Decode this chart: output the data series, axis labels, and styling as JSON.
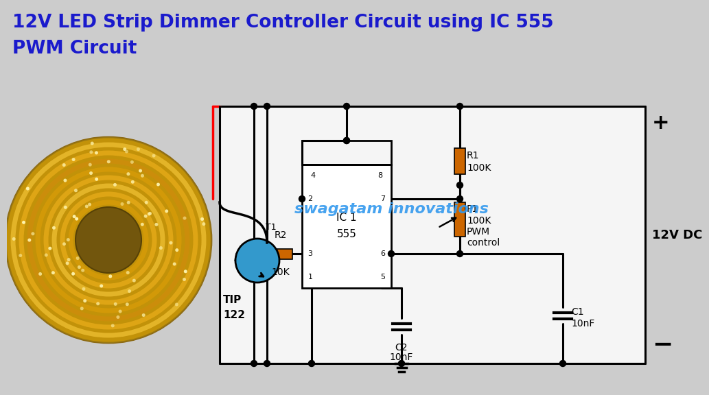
{
  "title_line1": "12V LED Strip Dimmer Controller Circuit using IC 555",
  "title_line2": "PWM Circuit",
  "title_color": "#1a1aCC",
  "bg_color": "#cccccc",
  "circuit_bg": "#f0f0f0",
  "wire_color": "#000000",
  "resistor_color": "#CC6600",
  "transistor_color": "#3399CC",
  "watermark": "swagatam innovations",
  "watermark_color": "#3399EE",
  "supply_label": "12V DC",
  "r1_label1": "R1",
  "r1_label2": "100K",
  "r2_label": "R2",
  "r2_val": "10K",
  "p1_label1": "P1",
  "p1_label2": "100K",
  "p1_label3": "PWM",
  "p1_label4": "control",
  "c1_label1": "C1",
  "c1_label2": "10nF",
  "c2_label1": "C2",
  "c2_label2": "10nF",
  "ic_label1": "IC 1",
  "ic_label2": "555",
  "t1_label": "T1",
  "tip_label1": "TIP",
  "tip_label2": "122"
}
